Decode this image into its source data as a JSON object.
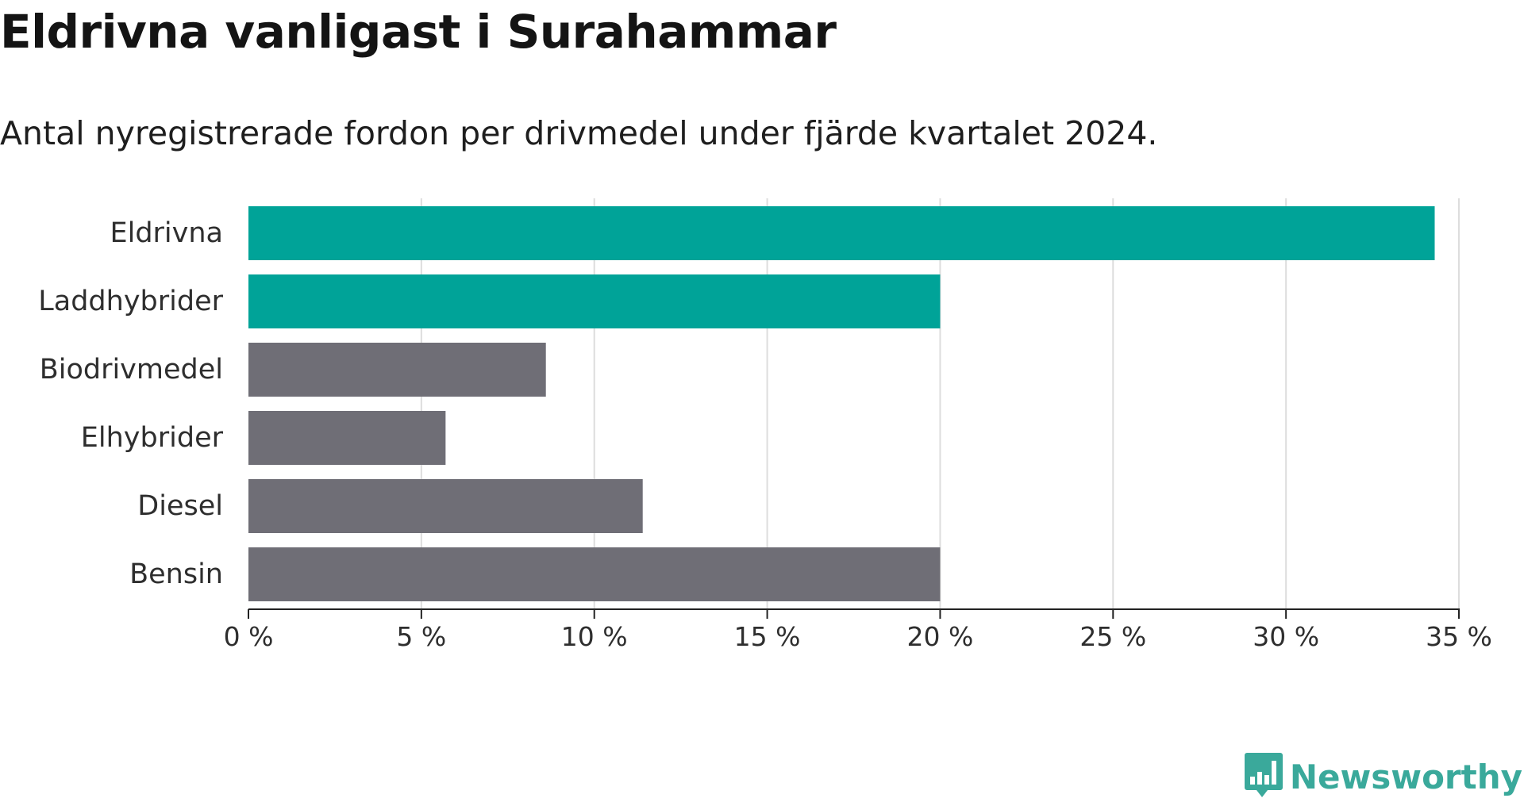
{
  "title": "Eldrivna vanligast i Surahammar",
  "subtitle": "Antal nyregistrerade fordon per drivmedel under fjärde kvartalet 2024.",
  "logo": {
    "text": "Newsworthy",
    "icon": "chart-bubble-icon",
    "color": "#3aa99b"
  },
  "colors": {
    "highlight": "#00a398",
    "neutral": "#6f6e76",
    "grid": "#dddddd",
    "axis": "#222222"
  },
  "chart_data": {
    "type": "bar",
    "orientation": "horizontal",
    "categories": [
      "Eldrivna",
      "Laddhybrider",
      "Biodrivmedel",
      "Elhybrider",
      "Diesel",
      "Bensin"
    ],
    "values": [
      34.3,
      20.0,
      8.6,
      5.7,
      11.4,
      20.0
    ],
    "highlighted": [
      true,
      true,
      false,
      false,
      false,
      false
    ],
    "unit": "%",
    "xlim": [
      0,
      35
    ],
    "xticks": [
      0,
      5,
      10,
      15,
      20,
      25,
      30,
      35
    ],
    "xtick_labels": [
      "0 %",
      "5 %",
      "10 %",
      "15 %",
      "20 %",
      "25 %",
      "30 %",
      "35 %"
    ],
    "grid": "vertical",
    "xlabel": "",
    "ylabel": ""
  }
}
